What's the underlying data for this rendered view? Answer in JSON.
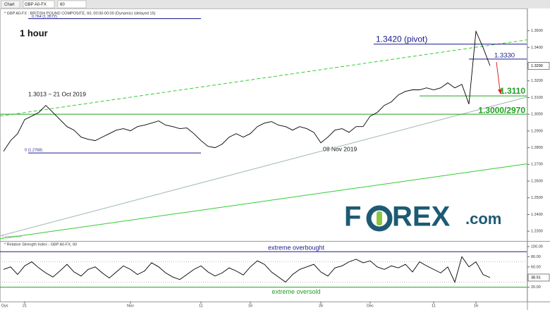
{
  "toolbar": {
    "tab": "Chart",
    "symbol": "GBP A0-FX",
    "interval": "60"
  },
  "logo": {
    "before": "F",
    "after": "REX",
    "suffix": ".com"
  },
  "credit": "© eSignal 2019",
  "x_axis_unit": "Dys",
  "chart_data": [
    {
      "type": "line",
      "title": "* GBP A0-FX : BRITISH POUND COMPOSITE, 60, 00:00-00:00 (Dynamic) (delayed 15)",
      "timeframe": "1 hour",
      "annotations": [
        "1.3013 ~ 21 Oct 2019",
        "08 Nov 2019"
      ],
      "categories": [
        null,
        null,
        null,
        "21",
        null,
        null,
        null,
        null,
        null,
        null,
        null,
        null,
        null,
        null,
        null,
        null,
        null,
        null,
        "Nov",
        null,
        null,
        null,
        null,
        null,
        null,
        null,
        null,
        null,
        "11",
        null,
        null,
        null,
        null,
        null,
        null,
        "16",
        null,
        null,
        null,
        null,
        null,
        null,
        null,
        null,
        null,
        "26",
        null,
        null,
        null,
        null,
        null,
        null,
        "Dec",
        null,
        null,
        null,
        null,
        null,
        null,
        null,
        null,
        "11",
        null,
        null,
        null,
        null,
        null,
        "16",
        null,
        null
      ],
      "values": [
        1.2778,
        1.2842,
        1.2884,
        1.2968,
        1.2989,
        1.3011,
        1.3053,
        1.3011,
        1.2968,
        1.2926,
        1.2905,
        1.2863,
        1.285,
        1.2842,
        1.2863,
        1.2884,
        1.2905,
        1.2914,
        1.2901,
        1.2926,
        1.2935,
        1.2947,
        1.296,
        1.2935,
        1.2926,
        1.2914,
        1.2918,
        1.2884,
        1.2842,
        1.2808,
        1.28,
        1.2821,
        1.2863,
        1.2884,
        1.2863,
        1.2884,
        1.2926,
        1.2947,
        1.2956,
        1.2935,
        1.2926,
        1.2905,
        1.2926,
        1.2914,
        1.2892,
        1.2829,
        1.2863,
        1.2905,
        1.2914,
        1.2892,
        1.2926,
        1.2926,
        1.2989,
        1.3011,
        1.3053,
        1.3074,
        1.3116,
        1.3137,
        1.3146,
        1.3146,
        1.3158,
        1.3146,
        1.3158,
        1.3188,
        1.3158,
        1.3179,
        1.3061,
        1.3496,
        1.34,
        1.329
      ],
      "value_labels": [
        null,
        null,
        null,
        null,
        null,
        null,
        null,
        null,
        null,
        null,
        null,
        null,
        null,
        null,
        null,
        null,
        null,
        null,
        null,
        null,
        null,
        null,
        null,
        null,
        null,
        null,
        null,
        null,
        null,
        null,
        null,
        null,
        null,
        null,
        null,
        null,
        null,
        null,
        null,
        null,
        null,
        null,
        null,
        null,
        null,
        null,
        null,
        null,
        null,
        null,
        null,
        null,
        null,
        null,
        null,
        null,
        null,
        null,
        null,
        null,
        null,
        null,
        null,
        null,
        null,
        null,
        null,
        null,
        null,
        "1.3290"
      ],
      "color": "#000000",
      "ylim": [
        1.225,
        1.357
      ],
      "yticks": [
        {
          "value": 1.35,
          "label": "1.3500"
        },
        {
          "value": 1.34,
          "label": "1.3400"
        },
        {
          "value": 1.33,
          "label": "1.3300"
        },
        {
          "value": 1.32,
          "label": "1.3200"
        },
        {
          "value": 1.31,
          "label": "1.3100"
        },
        {
          "value": 1.3,
          "label": "1.3000"
        },
        {
          "value": 1.29,
          "label": "1.2900"
        },
        {
          "value": 1.28,
          "label": "1.2800"
        },
        {
          "value": 1.27,
          "label": "1.2700"
        },
        {
          "value": 1.26,
          "label": "1.2600"
        },
        {
          "value": 1.25,
          "label": "1.2500"
        },
        {
          "value": 1.24,
          "label": "1.2400"
        },
        {
          "value": 1.23,
          "label": "1.2300"
        }
      ],
      "levels": [
        {
          "value": 1.3572,
          "label": "0.764 (1.3572)",
          "color": "#1c1c8c"
        },
        {
          "value": 1.2768,
          "label": "0 (1.2768)",
          "color": "#1c1c8c"
        },
        {
          "value": 1.342,
          "label": "1.3420 (pivot)",
          "color": "#1c1c8c"
        },
        {
          "value": 1.333,
          "label": "1.3330",
          "color": "#1c1c8c"
        },
        {
          "value": 1.311,
          "label": "1.3110",
          "color": "#22a022"
        },
        {
          "value": 1.3,
          "label": "1.3000/2970",
          "color": "#22a022"
        }
      ],
      "trendlines": [
        {
          "values": [
            1.2989,
            1.3445
          ],
          "color": "#33cc33",
          "dashed": true
        },
        {
          "values": [
            1.2272,
            1.3103
          ],
          "color": "#9fb4b4",
          "dashed": false
        },
        {
          "values": [
            1.2255,
            1.2703
          ],
          "color": "#33cc33",
          "dashed": false
        }
      ]
    },
    {
      "type": "line",
      "title": "* Relative Strength Index - GBP A0-FX, 60",
      "values": [
        55,
        60,
        45,
        62,
        70,
        58,
        48,
        40,
        52,
        65,
        50,
        42,
        55,
        60,
        48,
        38,
        50,
        62,
        55,
        45,
        52,
        68,
        60,
        48,
        40,
        35,
        45,
        55,
        62,
        50,
        42,
        48,
        58,
        52,
        44,
        60,
        72,
        65,
        50,
        40,
        30,
        45,
        55,
        60,
        65,
        50,
        42,
        58,
        62,
        70,
        75,
        68,
        72,
        60,
        55,
        62,
        58,
        65,
        50,
        70,
        62,
        55,
        48,
        60,
        30,
        80,
        60,
        70,
        45,
        38.91
      ],
      "value_labels": [
        null,
        null,
        null,
        null,
        null,
        null,
        null,
        null,
        null,
        null,
        null,
        null,
        null,
        null,
        null,
        null,
        null,
        null,
        null,
        null,
        null,
        null,
        null,
        null,
        null,
        null,
        null,
        null,
        null,
        null,
        null,
        null,
        null,
        null,
        null,
        null,
        null,
        null,
        null,
        null,
        null,
        null,
        null,
        null,
        null,
        null,
        null,
        null,
        null,
        null,
        null,
        null,
        null,
        null,
        null,
        null,
        null,
        null,
        null,
        null,
        null,
        null,
        null,
        null,
        null,
        null,
        null,
        null,
        null,
        "38.91"
      ],
      "color": "#000000",
      "ylim": [
        0,
        100
      ],
      "yticks": [
        {
          "value": 100,
          "label": "100.00"
        },
        {
          "value": 80,
          "label": "80.00"
        },
        {
          "value": 60,
          "label": "60.00"
        },
        {
          "value": 20,
          "label": "20.00"
        }
      ],
      "levels": [
        {
          "value": 90,
          "label": "extreme overbought",
          "color": "#1c1c8c"
        },
        {
          "value": 20,
          "label": "extreme oversold",
          "color": "#22a022"
        }
      ]
    }
  ]
}
